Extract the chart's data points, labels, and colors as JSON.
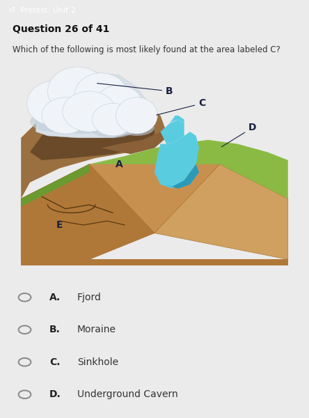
{
  "title_bar_color": "#26c6da",
  "title_bar_text": "↺  Pretest: Unit 2",
  "question_text": "Question 26 of 41",
  "question_body": "Which of the following is most likely found at the area labeled C?",
  "bg_color": "#ebebeb",
  "image_bg": "#aadde8",
  "options": [
    {
      "letter": "A",
      "text": "Fjord"
    },
    {
      "letter": "B",
      "text": "Moraine"
    },
    {
      "letter": "C",
      "text": "Sinkhole"
    },
    {
      "letter": "D",
      "text": "Underground Cavern"
    }
  ],
  "colors": {
    "sand_top": "#c8965a",
    "sand_mid": "#b8843a",
    "sand_side": "#c8965a",
    "brown_dark": "#7a5230",
    "brown_med": "#9a6a3a",
    "green_light": "#8aba44",
    "green_dark": "#6a9a30",
    "glacier_base": "#d8e0e8",
    "glacier_white": "#f0f4f8",
    "glacier_shadow": "#c0ccd8",
    "water_light": "#5acce0",
    "water_dark": "#2a9ab8",
    "crack_color": "#5a3810",
    "label_color": "#1a2040"
  }
}
